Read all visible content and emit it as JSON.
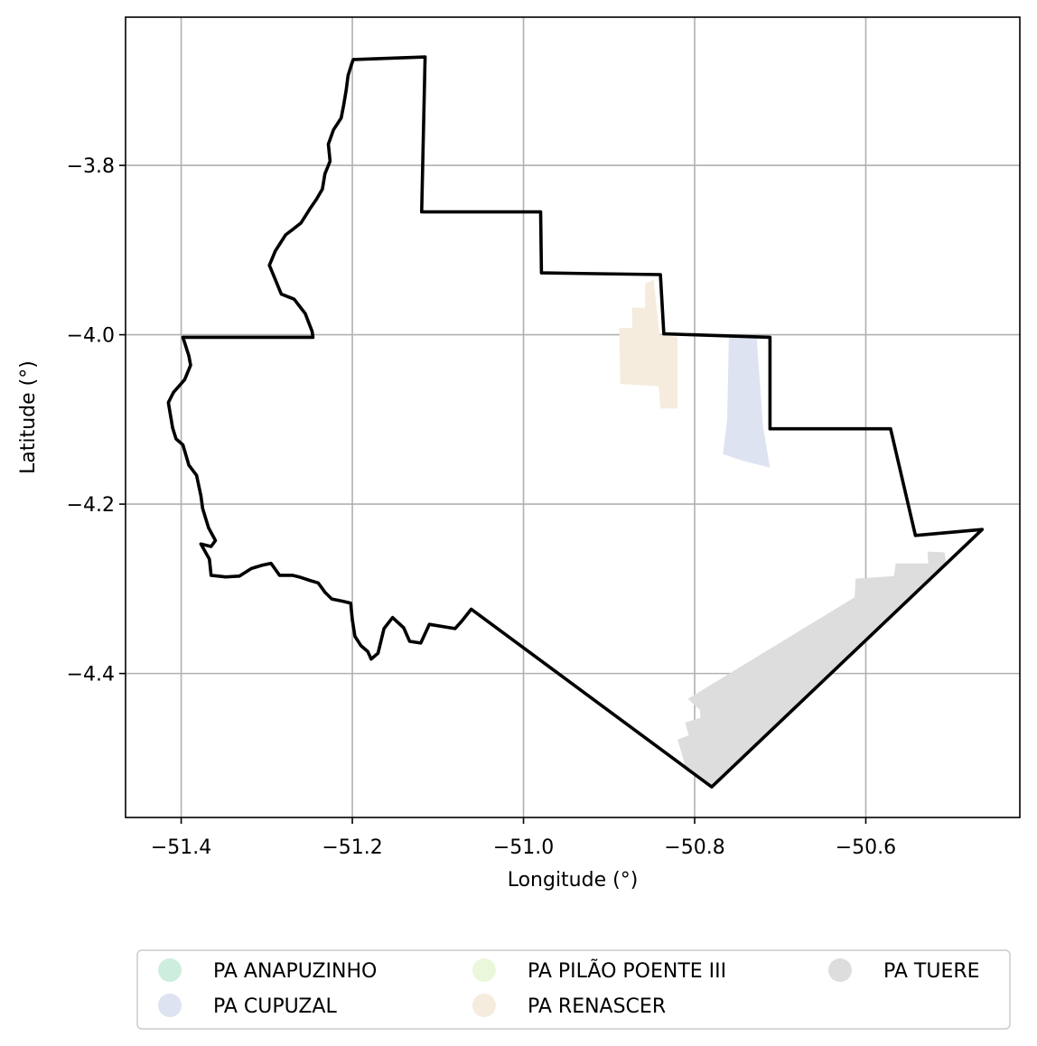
{
  "chart_data": {
    "type": "map",
    "title": "",
    "xlabel": "Longitude (°)",
    "ylabel": "Latitude (°)",
    "xlim": [
      -51.465,
      -50.42
    ],
    "ylim": [
      -4.57,
      -3.625
    ],
    "grid": true,
    "x_ticks": [
      {
        "value": -51.4,
        "label": "−51.4"
      },
      {
        "value": -51.2,
        "label": "−51.2"
      },
      {
        "value": -51.0,
        "label": "−51.0"
      },
      {
        "value": -50.8,
        "label": "−50.8"
      },
      {
        "value": -50.6,
        "label": "−50.6"
      }
    ],
    "y_ticks": [
      {
        "value": -3.8,
        "label": "−3.8"
      },
      {
        "value": -4.0,
        "label": "−4.0"
      },
      {
        "value": -4.2,
        "label": "−4.2"
      },
      {
        "value": -4.4,
        "label": "−4.4"
      }
    ],
    "legend_position": "bottom",
    "legend": [
      {
        "name": "PA ANAPUZINHO",
        "color": "#cdeede"
      },
      {
        "name": "PA CUPUZAL",
        "color": "#dee3f1"
      },
      {
        "name": "PA PILÃO POENTE III",
        "color": "#ebf7db"
      },
      {
        "name": "PA RENASCER",
        "color": "#f5ecde"
      },
      {
        "name": "PA TUERE",
        "color": "#dddddd"
      }
    ],
    "settlements": [
      {
        "name": "PA RENASCER",
        "color": "#f5ecde",
        "coords": [
          [
            -50.858,
            -3.94
          ],
          [
            -50.858,
            -3.968
          ],
          [
            -50.873,
            -3.968
          ],
          [
            -50.873,
            -3.992
          ],
          [
            -50.888,
            -3.992
          ],
          [
            -50.887,
            -4.058
          ],
          [
            -50.842,
            -4.061
          ],
          [
            -50.84,
            -4.087
          ],
          [
            -50.82,
            -4.087
          ],
          [
            -50.82,
            -4.003
          ],
          [
            -50.841,
            -4.0
          ],
          [
            -50.848,
            -3.935
          ]
        ]
      },
      {
        "name": "PA CUPUZAL",
        "color": "#dee3f1",
        "coords": [
          [
            -50.76,
            -4.003
          ],
          [
            -50.727,
            -4.003
          ],
          [
            -50.727,
            -4.011
          ],
          [
            -50.72,
            -4.109
          ],
          [
            -50.712,
            -4.157
          ],
          [
            -50.743,
            -4.149
          ],
          [
            -50.767,
            -4.141
          ],
          [
            -50.762,
            -4.1
          ]
        ]
      },
      {
        "name": "PA TUERE",
        "color": "#dddddd",
        "coords": [
          [
            -50.508,
            -4.257
          ],
          [
            -50.528,
            -4.256
          ],
          [
            -50.527,
            -4.27
          ],
          [
            -50.565,
            -4.27
          ],
          [
            -50.567,
            -4.285
          ],
          [
            -50.612,
            -4.288
          ],
          [
            -50.613,
            -4.31
          ],
          [
            -50.808,
            -4.43
          ],
          [
            -50.794,
            -4.443
          ],
          [
            -50.793,
            -4.452
          ],
          [
            -50.811,
            -4.458
          ],
          [
            -50.807,
            -4.473
          ],
          [
            -50.82,
            -4.478
          ],
          [
            -50.813,
            -4.502
          ],
          [
            -50.81,
            -4.515
          ],
          [
            -50.78,
            -4.533
          ],
          [
            -50.506,
            -4.27
          ]
        ]
      }
    ],
    "boundary": [
      [
        -51.199,
        -3.675
      ],
      [
        -51.115,
        -3.672
      ],
      [
        -51.119,
        -3.855
      ],
      [
        -50.98,
        -3.855
      ],
      [
        -50.979,
        -3.927
      ],
      [
        -50.84,
        -3.929
      ],
      [
        -50.836,
        -3.999
      ],
      [
        -50.712,
        -4.003
      ],
      [
        -50.712,
        -4.111
      ],
      [
        -50.571,
        -4.111
      ],
      [
        -50.542,
        -4.237
      ],
      [
        -50.464,
        -4.23
      ],
      [
        -50.78,
        -4.534
      ],
      [
        -51.061,
        -4.324
      ],
      [
        -51.072,
        -4.338
      ],
      [
        -51.08,
        -4.347
      ],
      [
        -51.11,
        -4.342
      ],
      [
        -51.12,
        -4.364
      ],
      [
        -51.133,
        -4.362
      ],
      [
        -51.14,
        -4.346
      ],
      [
        -51.153,
        -4.334
      ],
      [
        -51.163,
        -4.347
      ],
      [
        -51.17,
        -4.376
      ],
      [
        -51.178,
        -4.383
      ],
      [
        -51.182,
        -4.374
      ],
      [
        -51.19,
        -4.367
      ],
      [
        -51.197,
        -4.356
      ],
      [
        -51.2,
        -4.337
      ],
      [
        -51.202,
        -4.317
      ],
      [
        -51.21,
        -4.315
      ],
      [
        -51.224,
        -4.312
      ],
      [
        -51.232,
        -4.304
      ],
      [
        -51.24,
        -4.293
      ],
      [
        -51.25,
        -4.29
      ],
      [
        -51.262,
        -4.286
      ],
      [
        -51.27,
        -4.284
      ],
      [
        -51.285,
        -4.284
      ],
      [
        -51.295,
        -4.27
      ],
      [
        -51.305,
        -4.272
      ],
      [
        -51.318,
        -4.276
      ],
      [
        -51.332,
        -4.285
      ],
      [
        -51.348,
        -4.286
      ],
      [
        -51.365,
        -4.284
      ],
      [
        -51.367,
        -4.265
      ],
      [
        -51.377,
        -4.247
      ],
      [
        -51.365,
        -4.25
      ],
      [
        -51.36,
        -4.243
      ],
      [
        -51.368,
        -4.228
      ],
      [
        -51.375,
        -4.205
      ],
      [
        -51.377,
        -4.19
      ],
      [
        -51.382,
        -4.166
      ],
      [
        -51.391,
        -4.154
      ],
      [
        -51.398,
        -4.13
      ],
      [
        -51.406,
        -4.123
      ],
      [
        -51.41,
        -4.11
      ],
      [
        -51.414,
        -4.086
      ],
      [
        -51.415,
        -4.08
      ],
      [
        -51.409,
        -4.068
      ],
      [
        -51.396,
        -4.053
      ],
      [
        -51.389,
        -4.036
      ],
      [
        -51.391,
        -4.025
      ],
      [
        -51.398,
        -4.003
      ],
      [
        -51.246,
        -4.003
      ],
      [
        -51.247,
        -3.996
      ],
      [
        -51.255,
        -3.975
      ],
      [
        -51.268,
        -3.958
      ],
      [
        -51.283,
        -3.952
      ],
      [
        -51.29,
        -3.935
      ],
      [
        -51.297,
        -3.918
      ],
      [
        -51.29,
        -3.901
      ],
      [
        -51.278,
        -3.882
      ],
      [
        -51.27,
        -3.876
      ],
      [
        -51.26,
        -3.868
      ],
      [
        -51.25,
        -3.852
      ],
      [
        -51.242,
        -3.84
      ],
      [
        -51.235,
        -3.828
      ],
      [
        -51.232,
        -3.81
      ],
      [
        -51.226,
        -3.795
      ],
      [
        -51.228,
        -3.775
      ],
      [
        -51.222,
        -3.758
      ],
      [
        -51.213,
        -3.744
      ],
      [
        -51.21,
        -3.728
      ],
      [
        -51.207,
        -3.71
      ],
      [
        -51.205,
        -3.694
      ],
      [
        -51.201,
        -3.681
      ]
    ]
  }
}
